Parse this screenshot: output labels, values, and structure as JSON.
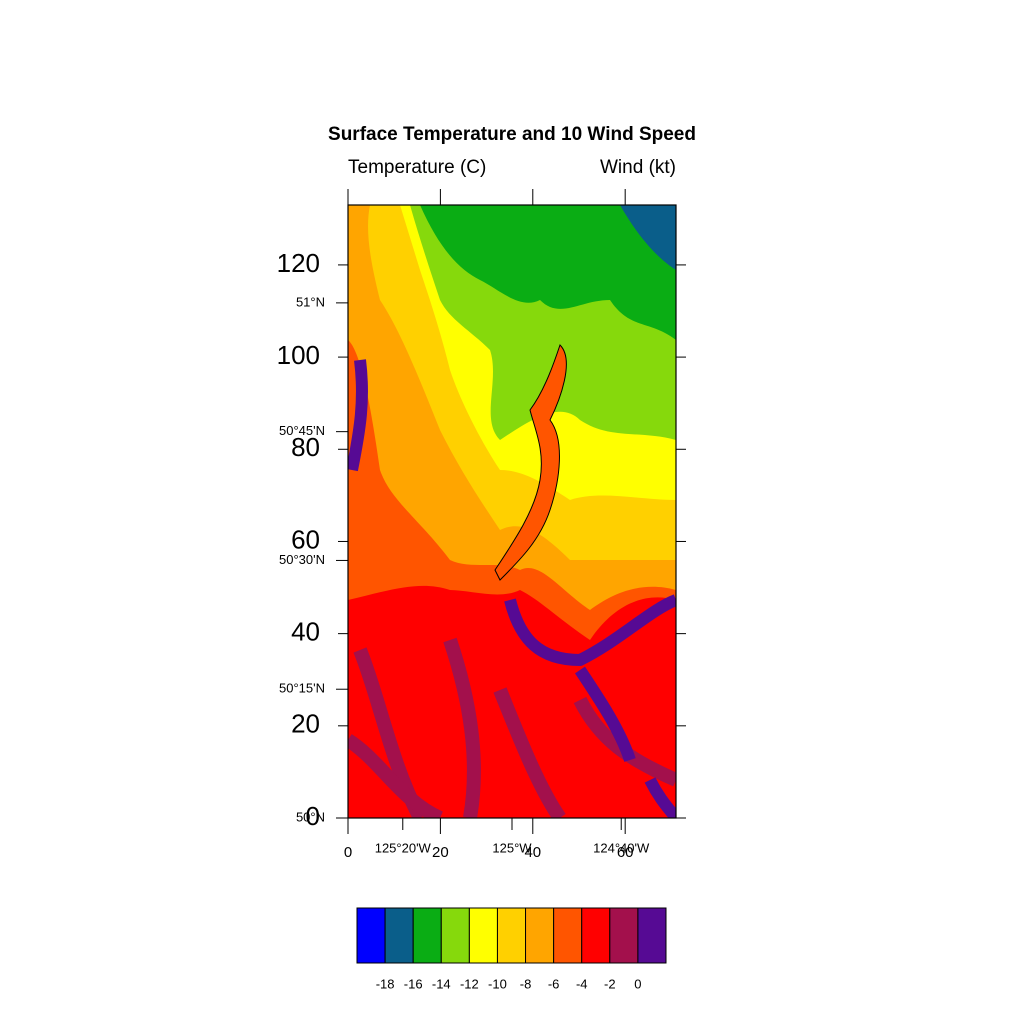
{
  "title": "Surface Temperature and 10 Wind Speed",
  "left_subtitle": "Temperature (C)",
  "right_subtitle": "Wind (kt)",
  "index_x": {
    "lim": [
      0,
      71
    ],
    "ticks": [
      0,
      20,
      40,
      60
    ]
  },
  "index_y": {
    "lim": [
      0,
      133
    ],
    "ticks": [
      0,
      20,
      40,
      60,
      80,
      100,
      120
    ]
  },
  "latitude": {
    "lim": [
      50,
      51.19
    ],
    "ticks": [
      {
        "value": 50,
        "label": "50°N"
      },
      {
        "value": 50.25,
        "label": "50°15'N"
      },
      {
        "value": 50.5,
        "label": "50°30'N"
      },
      {
        "value": 50.75,
        "label": "50°45'N"
      },
      {
        "value": 51,
        "label": "51°N"
      }
    ]
  },
  "longitude": {
    "lim": [
      -125.5,
      -124.5
    ],
    "ticks": [
      {
        "value": -125.333,
        "label": "125°20'W"
      },
      {
        "value": -125,
        "label": "125°W"
      },
      {
        "value": -124.667,
        "label": "124°40'W"
      }
    ]
  },
  "colorbar": {
    "colors": [
      "#0000ff",
      "#0a5e8a",
      "#0aad14",
      "#86d90c",
      "#ffff00",
      "#ffd000",
      "#ffa500",
      "#ff5500",
      "#ff0000",
      "#a3104c",
      "#560a94"
    ],
    "levels": [
      -18,
      -16,
      -14,
      -12,
      -10,
      -8,
      -6,
      -4,
      -2,
      0
    ]
  }
}
